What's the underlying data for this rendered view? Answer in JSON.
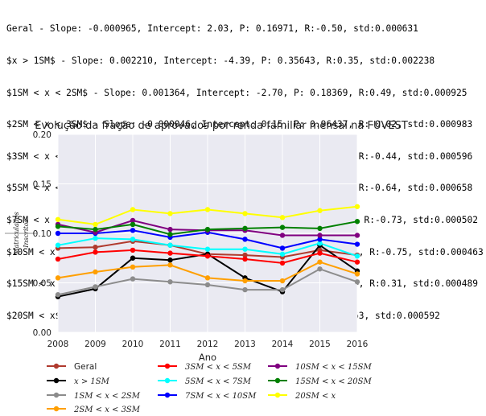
{
  "stats_lines": [
    "Geral - Slope: -0.000965, Intercept: 2.03, P: 0.16971, R:-0.50, std:0.000631",
    "$x > 1SM$ - Slope: 0.002210, Intercept: -4.39, P: 0.35643, R:0.35, std:0.002238",
    "$1SM < x < 2SM$ - Slope: 0.001364, Intercept: -2.70, P: 0.18369, R:0.49, std:0.000925",
    "$2SM < x < 3SM$ - Slope: -0.000046, Intercept: 0.15, P: 0.96437, R:-0.02, std:0.000983",
    "$3SM < x < 5SM$ - Slope: -0.000765, Intercept: 1.61, P: 0.24048, R:-0.44, std:0.000596",
    "$5SM < x < 7SM$ - Slope: -0.001455, Intercept: 3.01, P: 0.06272, R:-0.64, std:0.000658",
    "$7SM < x < 10SM$ - Slope: -0.001402, Intercept: 2.92, P: 0.02674, R:-0.73, std:0.000502",
    "$10SM < x < 15SM$ - Slope: -0.001400, Intercept: 2.92, P: 0.01921, R:-0.75, std:0.000463",
    "$15SM < x < 20SM$ - Slope: 0.000423, Intercept: -0.75, P: 0.41594, R:0.31, std:0.000489",
    "$20SM < x$ - Slope: 0.001275, Intercept: -2.45, P: 0.06835, R:0.63, std:0.000592"
  ],
  "chart_data": {
    "type": "line",
    "title": "Evolução da fração de aprovados por renda familiar mensal na FUVEST",
    "xlabel": "Ano",
    "ylabel_num": "Matriculados",
    "ylabel_den": "Inscritos",
    "x": [
      2008,
      2009,
      2010,
      2011,
      2012,
      2013,
      2014,
      2015,
      2016
    ],
    "xlim": [
      2008,
      2016
    ],
    "ylim": [
      0.0,
      0.2
    ],
    "yticks": [
      0.0,
      0.05,
      0.1,
      0.15,
      0.2
    ],
    "ytick_labels": [
      "0.00",
      "0.05",
      "0.10",
      "0.15",
      "0.20"
    ],
    "grid": true,
    "legend_position": "bottom",
    "series": [
      {
        "name": "Geral",
        "color": "#b03a2e",
        "values": [
          0.085,
          0.086,
          0.092,
          0.088,
          0.079,
          0.078,
          0.076,
          0.083,
          0.078
        ]
      },
      {
        "name": "x > 1SM",
        "color": "#000000",
        "values": [
          0.036,
          0.044,
          0.075,
          0.073,
          0.079,
          0.055,
          0.041,
          0.088,
          0.062
        ]
      },
      {
        "name": "1SM < x < 2SM",
        "color": "#8c8c8c",
        "values": [
          0.038,
          0.046,
          0.054,
          0.051,
          0.048,
          0.043,
          0.043,
          0.064,
          0.051
        ]
      },
      {
        "name": "2SM < x < 3SM",
        "color": "#ff9f00",
        "values": [
          0.055,
          0.061,
          0.066,
          0.068,
          0.055,
          0.052,
          0.052,
          0.071,
          0.059
        ]
      },
      {
        "name": "3SM < x < 5SM",
        "color": "#ff0000",
        "values": [
          0.074,
          0.081,
          0.083,
          0.08,
          0.077,
          0.074,
          0.07,
          0.08,
          0.071
        ]
      },
      {
        "name": "5SM < x < 7SM",
        "color": "#00ffff",
        "values": [
          0.088,
          0.095,
          0.094,
          0.088,
          0.084,
          0.084,
          0.079,
          0.09,
          0.077
        ]
      },
      {
        "name": "7SM < x < 10SM",
        "color": "#0000ff",
        "values": [
          0.1,
          0.1,
          0.103,
          0.096,
          0.101,
          0.094,
          0.085,
          0.094,
          0.089
        ]
      },
      {
        "name": "10SM < x < 15SM",
        "color": "#800080",
        "values": [
          0.109,
          0.101,
          0.113,
          0.104,
          0.103,
          0.103,
          0.098,
          0.098,
          0.098
        ]
      },
      {
        "name": "15SM < x < 20SM",
        "color": "#008000",
        "values": [
          0.107,
          0.104,
          0.109,
          0.099,
          0.104,
          0.105,
          0.106,
          0.105,
          0.112
        ]
      },
      {
        "name": "20SM < x",
        "color": "#ffff00",
        "values": [
          0.114,
          0.109,
          0.124,
          0.12,
          0.124,
          0.12,
          0.116,
          0.123,
          0.127
        ]
      }
    ]
  }
}
